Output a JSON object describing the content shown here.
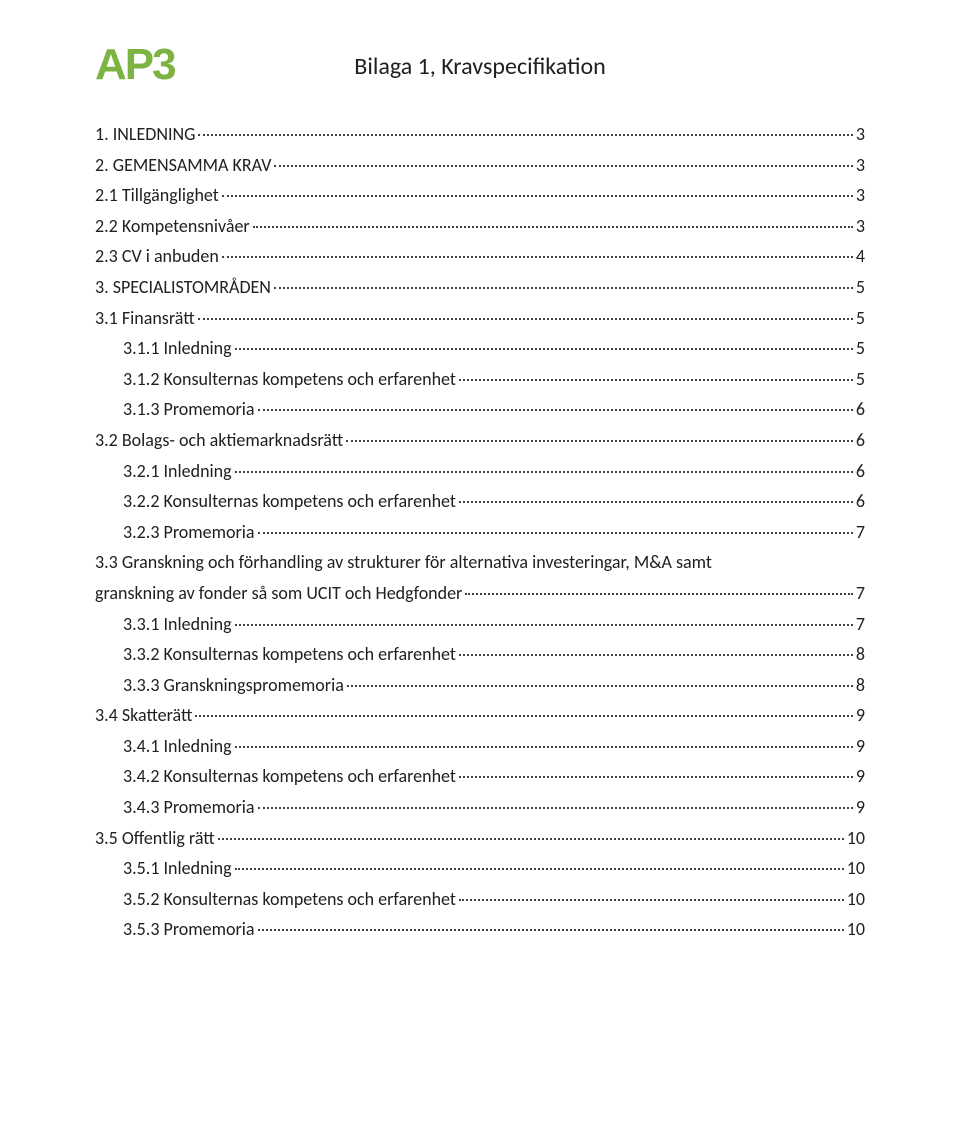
{
  "logo": "AP3",
  "title": "Bilaga 1, Kravspecifikation",
  "text_color": "#202020",
  "logo_color": "#7cb342",
  "background_color": "#ffffff",
  "base_font_size": 18,
  "title_font_size": 24,
  "logo_font_size": 44,
  "toc": [
    {
      "lvl": 1,
      "label": "1.    INLEDNING",
      "page": "3"
    },
    {
      "lvl": 1,
      "label": "2.    GEMENSAMMA KRAV",
      "page": "3"
    },
    {
      "lvl": 2,
      "label": "2.1 Tillgänglighet",
      "page": "3"
    },
    {
      "lvl": 2,
      "label": "2.2 Kompetensnivåer",
      "page": "3"
    },
    {
      "lvl": 2,
      "label": "2.3 CV i anbuden",
      "page": "4"
    },
    {
      "lvl": 1,
      "label": "3.    SPECIALISTOMRÅDEN",
      "page": "5"
    },
    {
      "lvl": 2,
      "label": "3.1 Finansrätt",
      "page": "5"
    },
    {
      "lvl": 3,
      "label": "3.1.1 Inledning",
      "page": "5"
    },
    {
      "lvl": 3,
      "label": "3.1.2 Konsulternas kompetens och erfarenhet",
      "page": "5"
    },
    {
      "lvl": 3,
      "label": "3.1.3 Promemoria",
      "page": "6"
    },
    {
      "lvl": 2,
      "label": "3.2 Bolags- och aktiemarknadsrätt",
      "page": "6"
    },
    {
      "lvl": 3,
      "label": "3.2.1 Inledning",
      "page": "6"
    },
    {
      "lvl": 3,
      "label": "3.2.2 Konsulternas kompetens och erfarenhet",
      "page": "6"
    },
    {
      "lvl": 3,
      "label": "3.2.3 Promemoria",
      "page": "7"
    },
    {
      "lvl": 2,
      "label_pre": "3.3 Granskning och förhandling av strukturer för alternativa investeringar, M&A samt",
      "label_last": "granskning av fonder så som UCIT och Hedgfonder",
      "page": "7",
      "wrap": true
    },
    {
      "lvl": 3,
      "label": "3.3.1 Inledning",
      "page": "7"
    },
    {
      "lvl": 3,
      "label": "3.3.2 Konsulternas kompetens och erfarenhet",
      "page": "8"
    },
    {
      "lvl": 3,
      "label": "3.3.3 Granskningspromemoria",
      "page": "8"
    },
    {
      "lvl": 2,
      "label": "3.4 Skatterätt",
      "page": "9"
    },
    {
      "lvl": 3,
      "label": "3.4.1 Inledning",
      "page": "9"
    },
    {
      "lvl": 3,
      "label": "3.4.2 Konsulternas kompetens och erfarenhet",
      "page": "9"
    },
    {
      "lvl": 3,
      "label": "3.4.3 Promemoria",
      "page": "9"
    },
    {
      "lvl": 2,
      "label": "3.5 Offentlig rätt",
      "page": "10"
    },
    {
      "lvl": 3,
      "label": "3.5.1 Inledning",
      "page": "10"
    },
    {
      "lvl": 3,
      "label": "3.5.2 Konsulternas kompetens och erfarenhet",
      "page": "10"
    },
    {
      "lvl": 3,
      "label": "3.5.3 Promemoria",
      "page": "10"
    }
  ]
}
